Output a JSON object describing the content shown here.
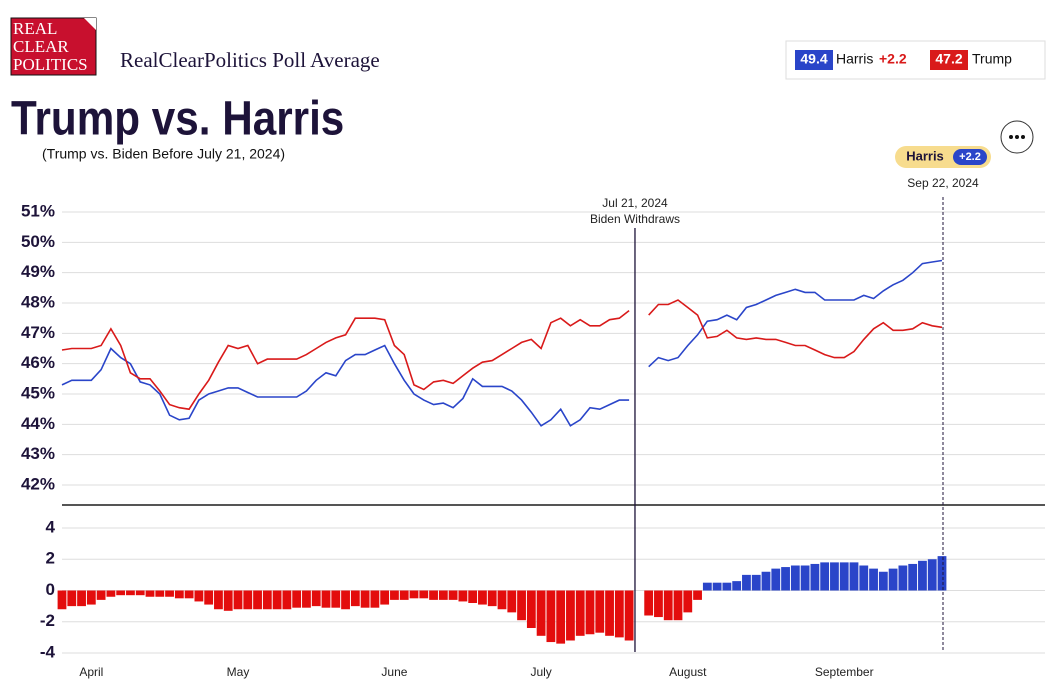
{
  "header": {
    "logo": [
      "REAL",
      "CLEAR",
      "POLITICS"
    ],
    "site_title": "RealClearPolitics Poll Average",
    "title": "Trump vs. Harris",
    "subtitle": "(Trump vs. Biden Before July 21, 2024)",
    "legend": [
      {
        "value": "49.4",
        "name": "Harris",
        "change": "+2.2"
      },
      {
        "value": "47.2",
        "name": "Trump"
      }
    ],
    "leader": {
      "name": "Harris",
      "lead": "+2.2",
      "date": "Sep 22, 2024"
    }
  },
  "chart_data": [
    {
      "type": "line",
      "ylim": [
        42,
        51
      ],
      "yticks": [
        {
          "value": 51,
          "label": "51%"
        },
        {
          "value": 50,
          "label": "50%"
        },
        {
          "value": 49,
          "label": "49%"
        },
        {
          "value": 48,
          "label": "48%"
        },
        {
          "value": 47,
          "label": "47%"
        },
        {
          "value": 46,
          "label": "46%"
        },
        {
          "value": 45,
          "label": "45%"
        },
        {
          "value": 44,
          "label": "44%"
        },
        {
          "value": 43,
          "label": "43%"
        },
        {
          "value": 42,
          "label": "42%"
        }
      ],
      "grid": true,
      "annotations": [
        "Jul 21, 2024",
        "Biden Withdraws"
      ],
      "series": [
        {
          "name": "Harris",
          "color": "#2a45c9",
          "values": [
            45.3,
            45.45,
            45.45,
            45.45,
            45.8,
            46.5,
            46.2,
            46.0,
            45.4,
            45.3,
            45.0,
            44.3,
            44.15,
            44.2,
            44.8,
            45.0,
            45.1,
            45.2,
            45.2,
            45.05,
            44.9,
            44.9,
            44.9,
            44.9,
            44.9,
            45.1,
            45.45,
            45.7,
            45.6,
            46.1,
            46.3,
            46.3,
            46.45,
            46.6,
            46.0,
            45.45,
            45.0,
            44.8,
            44.65,
            44.7,
            44.55,
            44.85,
            45.5,
            45.25,
            45.25,
            45.25,
            45.1,
            44.8,
            44.4,
            43.95,
            44.15,
            44.5,
            43.95,
            44.15,
            44.55,
            44.5,
            44.65,
            44.8,
            44.8,
            null,
            45.9,
            46.2,
            46.1,
            46.2,
            46.6,
            46.95,
            47.4,
            47.45,
            47.6,
            47.45,
            47.85,
            47.95,
            48.1,
            48.25,
            48.35,
            48.45,
            48.35,
            48.35,
            48.1,
            48.1,
            48.1,
            48.1,
            48.25,
            48.15,
            48.4,
            48.6,
            48.75,
            49.0,
            49.3,
            49.35,
            49.4
          ]
        },
        {
          "name": "Trump",
          "color": "#d91a1a",
          "values": [
            46.45,
            46.5,
            46.5,
            46.5,
            46.6,
            47.15,
            46.6,
            45.7,
            45.5,
            45.5,
            45.1,
            44.65,
            44.55,
            44.5,
            45.0,
            45.45,
            46.05,
            46.6,
            46.5,
            46.6,
            46.0,
            46.15,
            46.15,
            46.15,
            46.15,
            46.3,
            46.5,
            46.7,
            46.85,
            46.95,
            47.5,
            47.5,
            47.5,
            47.45,
            46.6,
            46.3,
            45.3,
            45.15,
            45.4,
            45.45,
            45.35,
            45.6,
            45.85,
            46.05,
            46.1,
            46.3,
            46.5,
            46.7,
            46.8,
            46.5,
            47.35,
            47.5,
            47.25,
            47.45,
            47.25,
            47.25,
            47.45,
            47.5,
            47.75,
            null,
            47.6,
            47.95,
            47.95,
            48.1,
            47.85,
            47.6,
            46.85,
            46.9,
            47.1,
            46.85,
            46.8,
            46.85,
            46.8,
            46.8,
            46.7,
            46.6,
            46.6,
            46.45,
            46.3,
            46.2,
            46.2,
            46.4,
            46.8,
            47.15,
            47.35,
            47.1,
            47.1,
            47.15,
            47.35,
            47.25,
            47.2
          ]
        }
      ]
    },
    {
      "type": "bar",
      "ylim": [
        -4,
        4
      ],
      "yticks": [
        4,
        2,
        0,
        -2,
        -4
      ],
      "grid": true,
      "positive_color": "#2a45c9",
      "negative_color": "#e30d0d",
      "categories": [
        null,
        null,
        null,
        "April",
        null,
        null,
        null,
        null,
        null,
        null,
        null,
        null,
        null,
        null,
        null,
        null,
        null,
        null,
        "May",
        null,
        null,
        null,
        null,
        null,
        null,
        null,
        null,
        null,
        null,
        null,
        null,
        null,
        null,
        null,
        "June",
        null,
        null,
        null,
        null,
        null,
        null,
        null,
        null,
        null,
        null,
        null,
        null,
        null,
        null,
        "July",
        null,
        null,
        null,
        null,
        null,
        null,
        null,
        null,
        null,
        null,
        null,
        null,
        null,
        null,
        "August",
        null,
        null,
        null,
        null,
        null,
        null,
        null,
        null,
        null,
        null,
        null,
        null,
        null,
        null,
        null,
        "September",
        null,
        null,
        null,
        null,
        null,
        null,
        null,
        null,
        null,
        null
      ],
      "values": [
        -1.2,
        -1.0,
        -1.0,
        -0.9,
        -0.6,
        -0.4,
        -0.3,
        -0.3,
        -0.3,
        -0.4,
        -0.4,
        -0.4,
        -0.5,
        -0.5,
        -0.7,
        -0.9,
        -1.2,
        -1.3,
        -1.2,
        -1.2,
        -1.2,
        -1.2,
        -1.2,
        -1.2,
        -1.1,
        -1.1,
        -1.0,
        -1.1,
        -1.1,
        -1.2,
        -1.0,
        -1.1,
        -1.1,
        -0.9,
        -0.6,
        -0.6,
        -0.5,
        -0.5,
        -0.6,
        -0.6,
        -0.6,
        -0.7,
        -0.8,
        -0.9,
        -1.0,
        -1.2,
        -1.4,
        -1.9,
        -2.4,
        -2.9,
        -3.3,
        -3.4,
        -3.2,
        -2.9,
        -2.8,
        -2.7,
        -2.9,
        -3.0,
        -3.2,
        null,
        -1.6,
        -1.7,
        -1.9,
        -1.9,
        -1.4,
        -0.6,
        0.5,
        0.5,
        0.5,
        0.6,
        1.0,
        1.0,
        1.2,
        1.4,
        1.5,
        1.6,
        1.6,
        1.7,
        1.8,
        1.8,
        1.8,
        1.8,
        1.6,
        1.4,
        1.2,
        1.4,
        1.6,
        1.7,
        1.9,
        2.0,
        2.2
      ]
    }
  ]
}
